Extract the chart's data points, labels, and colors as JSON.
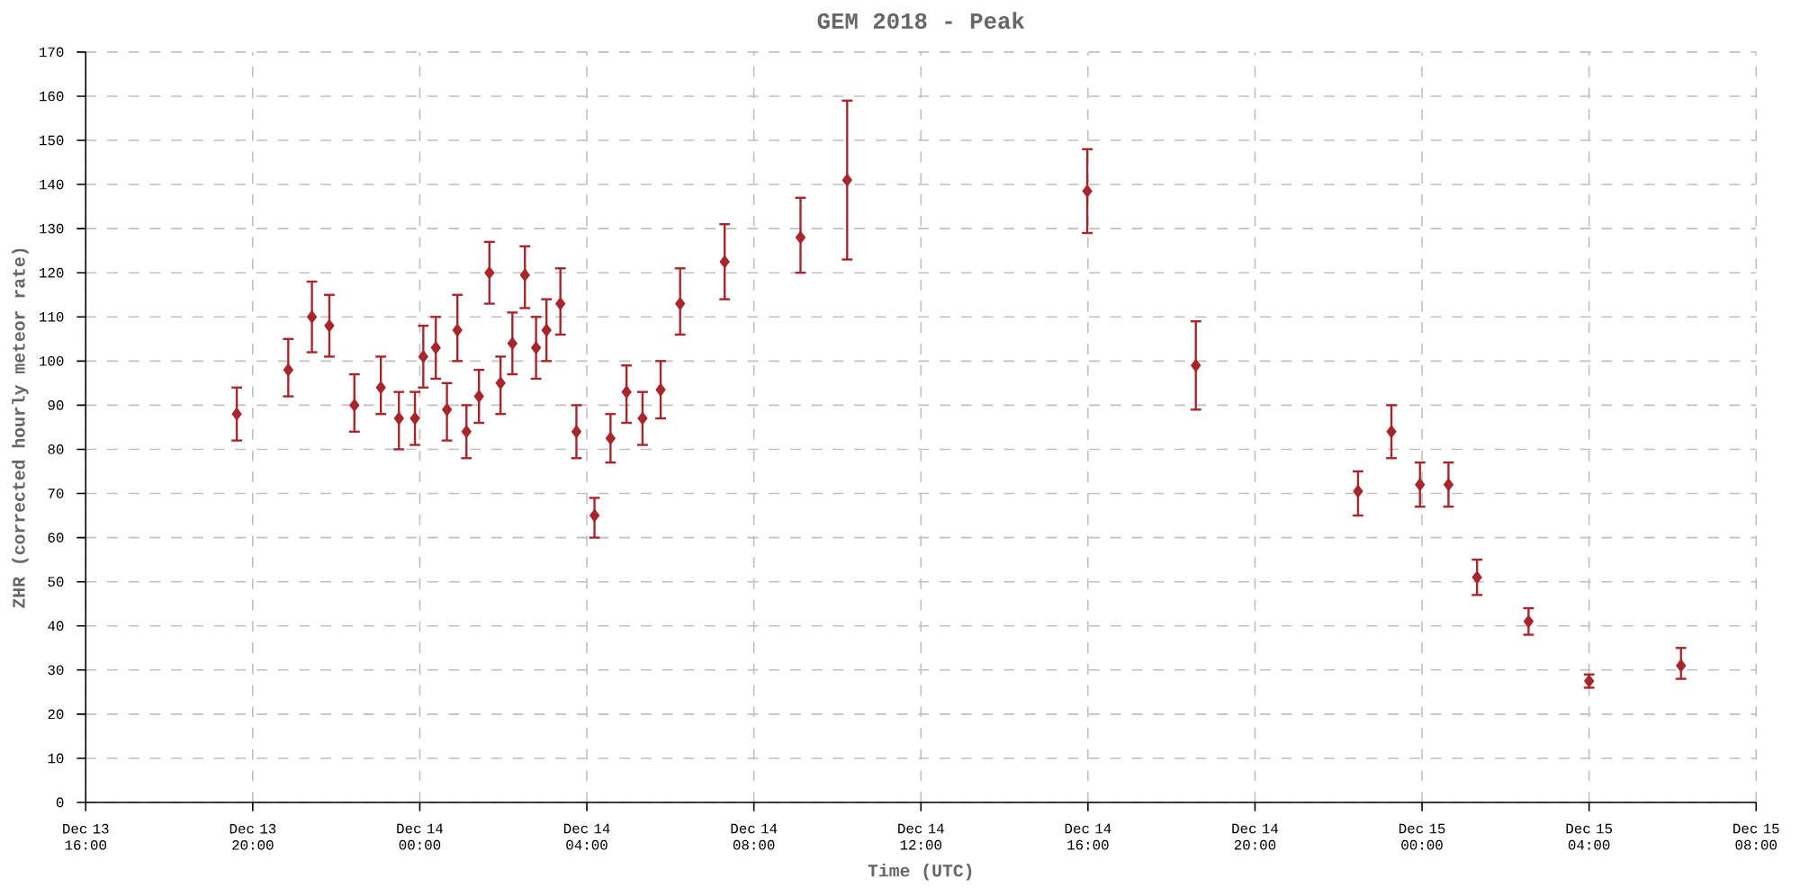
{
  "chart_data": {
    "type": "scatter",
    "title": "GEM 2018 - Peak",
    "xlabel": "Time (UTC)",
    "ylabel": "ZHR (corrected hourly meteor rate)",
    "color": "#a8262b",
    "marker": "diamond",
    "grid": true,
    "xlim": [
      "2018-12-13T16:00",
      "2018-12-15T08:00"
    ],
    "xticks": [
      {
        "value": "2018-12-13T16:00",
        "label": "Dec 13 16:00"
      },
      {
        "value": "2018-12-13T20:00",
        "label": "Dec 13 20:00"
      },
      {
        "value": "2018-12-14T00:00",
        "label": "Dec 14 00:00"
      },
      {
        "value": "2018-12-14T04:00",
        "label": "Dec 14 04:00"
      },
      {
        "value": "2018-12-14T08:00",
        "label": "Dec 14 08:00"
      },
      {
        "value": "2018-12-14T12:00",
        "label": "Dec 14 12:00"
      },
      {
        "value": "2018-12-14T16:00",
        "label": "Dec 14 16:00"
      },
      {
        "value": "2018-12-14T20:00",
        "label": "Dec 14 20:00"
      },
      {
        "value": "2018-12-15T00:00",
        "label": "Dec 15 00:00"
      },
      {
        "value": "2018-12-15T04:00",
        "label": "Dec 15 04:00"
      },
      {
        "value": "2018-12-15T08:00",
        "label": "Dec 15 08:00"
      }
    ],
    "ylim": [
      0,
      170
    ],
    "yticks": [
      0,
      10,
      20,
      30,
      40,
      50,
      60,
      70,
      80,
      90,
      100,
      110,
      120,
      130,
      140,
      150,
      160,
      170
    ],
    "x": [
      "2018-12-13T19:37",
      "2018-12-13T20:51",
      "2018-12-13T21:25",
      "2018-12-13T21:50",
      "2018-12-13T22:26",
      "2018-12-13T23:04",
      "2018-12-13T23:30",
      "2018-12-13T23:53",
      "2018-12-14T00:05",
      "2018-12-14T00:23",
      "2018-12-14T00:39",
      "2018-12-14T00:54",
      "2018-12-14T01:07",
      "2018-12-14T01:25",
      "2018-12-14T01:40",
      "2018-12-14T01:56",
      "2018-12-14T02:13",
      "2018-12-14T02:31",
      "2018-12-14T02:47",
      "2018-12-14T03:02",
      "2018-12-14T03:22",
      "2018-12-14T03:45",
      "2018-12-14T04:11",
      "2018-12-14T04:34",
      "2018-12-14T04:57",
      "2018-12-14T05:20",
      "2018-12-14T05:46",
      "2018-12-14T06:14",
      "2018-12-14T07:18",
      "2018-12-14T09:07",
      "2018-12-14T10:14",
      "2018-12-14T15:59",
      "2018-12-14T18:35",
      "2018-12-14T22:28",
      "2018-12-14T23:16",
      "2018-12-14T23:57",
      "2018-12-15T00:38",
      "2018-12-15T01:19",
      "2018-12-15T02:33",
      "2018-12-15T04:00",
      "2018-12-15T06:12"
    ],
    "values": [
      88,
      98,
      110,
      108,
      90,
      94,
      87,
      87,
      101,
      103,
      89,
      107,
      84,
      92,
      120,
      95,
      104,
      119.5,
      103,
      107,
      113,
      84,
      65,
      82.5,
      93,
      87,
      93.5,
      113,
      122.5,
      128,
      141,
      138.5,
      99,
      70.5,
      84,
      72,
      72,
      51,
      41,
      27.5,
      31
    ],
    "errors": [
      [
        82,
        94
      ],
      [
        92,
        105
      ],
      [
        102,
        118
      ],
      [
        101,
        115
      ],
      [
        84,
        97
      ],
      [
        88,
        101
      ],
      [
        80,
        93
      ],
      [
        81,
        93
      ],
      [
        94,
        108
      ],
      [
        96,
        110
      ],
      [
        82,
        95
      ],
      [
        100,
        115
      ],
      [
        78,
        90
      ],
      [
        86,
        98
      ],
      [
        113,
        127
      ],
      [
        88,
        101
      ],
      [
        97,
        111
      ],
      [
        112,
        126
      ],
      [
        96,
        110
      ],
      [
        100,
        114
      ],
      [
        106,
        121
      ],
      [
        78,
        90
      ],
      [
        60,
        69
      ],
      [
        77,
        88
      ],
      [
        86,
        99
      ],
      [
        81,
        93
      ],
      [
        87,
        100
      ],
      [
        106,
        121
      ],
      [
        114,
        131
      ],
      [
        120,
        137
      ],
      [
        123,
        159
      ],
      [
        129,
        148
      ],
      [
        89,
        109
      ],
      [
        65,
        75
      ],
      [
        78,
        90
      ],
      [
        67,
        77
      ],
      [
        67,
        77
      ],
      [
        47,
        55
      ],
      [
        38,
        44
      ],
      [
        26,
        29
      ],
      [
        28,
        35
      ]
    ]
  }
}
